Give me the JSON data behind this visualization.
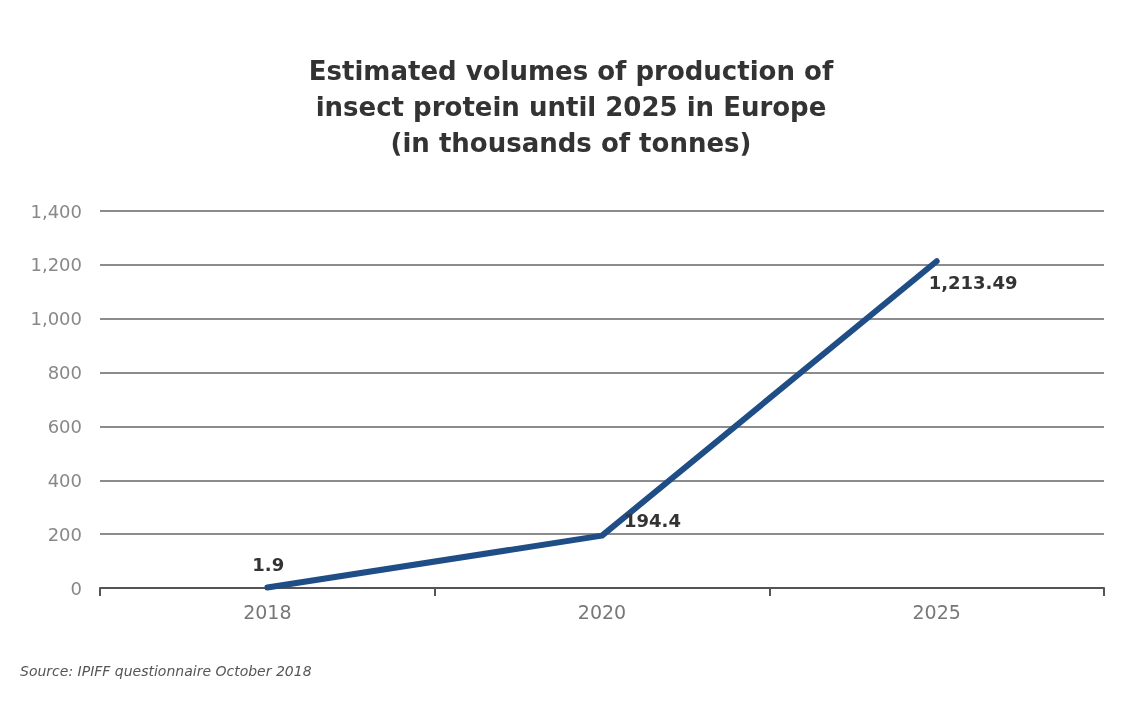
{
  "chart_data": {
    "type": "line",
    "title": "Estimated volumes of production of\ninsect protein until 2025 in Europe\n(in thousands of tonnes)",
    "categories": [
      "2018",
      "2020",
      "2025"
    ],
    "series": [
      {
        "color": "#1f4e86",
        "values": [
          1.9,
          194.4,
          1213.49
        ],
        "value_labels": [
          "1.9",
          "194.4",
          "1,213.49"
        ]
      }
    ],
    "ylim": [
      0,
      1400
    ],
    "yticks": [
      0,
      200,
      400,
      600,
      800,
      {
        "value": 1000,
        "label": "1,000"
      },
      {
        "value": 1200,
        "label": "1,200"
      },
      {
        "value": 1400,
        "label": "1,400"
      }
    ],
    "grid": "y",
    "marker": "none",
    "line_style": "solid",
    "annotations": [
      "Source: IPIFF questionnaire October 2018"
    ]
  }
}
